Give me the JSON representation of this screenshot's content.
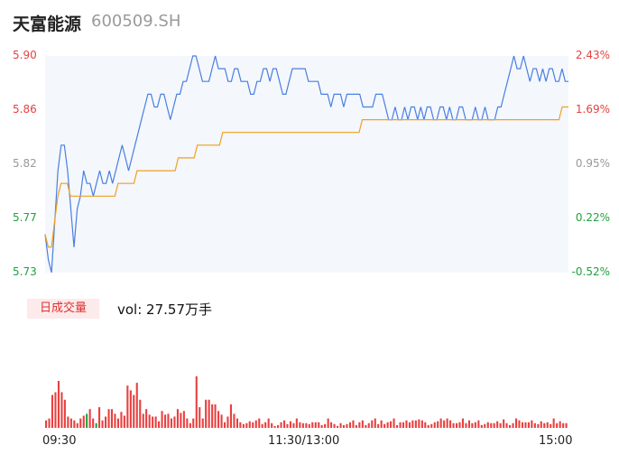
{
  "header": {
    "name": "天富能源",
    "code": "600509.SH"
  },
  "volume_panel": {
    "badge": "日成交量",
    "vol_text": "vol: 27.57万手"
  },
  "colors": {
    "price": "#4a7fe0",
    "avg": "#f0a020",
    "up": "#e84040",
    "down": "#20a040",
    "flat": "#999999",
    "area": "#f4f7fc"
  },
  "chart_data": [
    {
      "type": "line",
      "title": "",
      "xlabel": "",
      "ylabel": "",
      "x_ticks": [
        "09:30",
        "11:30/13:00",
        "15:00"
      ],
      "y_ticks_left": [
        "5.90",
        "5.86",
        "5.82",
        "5.77",
        "5.73"
      ],
      "y_ticks_right": [
        "2.43%",
        "1.69%",
        "0.95%",
        "0.22%",
        "-0.52%"
      ],
      "ylim": [
        5.73,
        5.9
      ],
      "grid": false,
      "series": [
        {
          "name": "",
          "values": [
            5.76,
            5.74,
            5.73,
            5.77,
            5.81,
            5.83,
            5.83,
            5.81,
            5.78,
            5.75,
            5.78,
            5.79,
            5.81,
            5.8,
            5.8,
            5.79,
            5.8,
            5.81,
            5.8,
            5.8,
            5.81,
            5.8,
            5.81,
            5.82,
            5.83,
            5.82,
            5.81,
            5.82,
            5.83,
            5.84,
            5.85,
            5.86,
            5.87,
            5.87,
            5.86,
            5.86,
            5.87,
            5.87,
            5.86,
            5.85,
            5.86,
            5.87,
            5.87,
            5.88,
            5.88,
            5.89,
            5.9,
            5.9,
            5.89,
            5.88,
            5.88,
            5.88,
            5.89,
            5.9,
            5.89,
            5.89,
            5.89,
            5.88,
            5.88,
            5.89,
            5.89,
            5.88,
            5.88,
            5.88,
            5.87,
            5.87,
            5.88,
            5.88,
            5.89,
            5.89,
            5.88,
            5.89,
            5.89,
            5.88,
            5.87,
            5.87,
            5.88,
            5.89,
            5.89,
            5.89,
            5.89,
            5.89,
            5.88,
            5.88,
            5.88,
            5.88,
            5.87,
            5.87,
            5.87,
            5.86,
            5.87,
            5.87,
            5.87,
            5.86,
            5.87,
            5.87,
            5.87,
            5.87,
            5.87,
            5.86,
            5.86,
            5.86,
            5.86,
            5.87,
            5.87,
            5.87,
            5.86,
            5.85,
            5.85,
            5.86,
            5.85,
            5.85,
            5.86,
            5.85,
            5.86,
            5.86,
            5.85,
            5.86,
            5.85,
            5.86,
            5.86,
            5.85,
            5.85,
            5.86,
            5.86,
            5.85,
            5.86,
            5.85,
            5.85,
            5.86,
            5.86,
            5.85,
            5.85,
            5.85,
            5.86,
            5.85,
            5.85,
            5.86,
            5.85,
            5.85,
            5.85,
            5.86,
            5.86,
            5.87,
            5.88,
            5.89,
            5.9,
            5.89,
            5.89,
            5.9,
            5.89,
            5.88,
            5.89,
            5.89,
            5.88,
            5.89,
            5.88,
            5.89,
            5.89,
            5.88,
            5.88,
            5.89,
            5.88,
            5.88
          ],
          "color": "#4a7fe0"
        },
        {
          "name": "",
          "values": [
            5.76,
            5.75,
            5.75,
            5.77,
            5.79,
            5.8,
            5.8,
            5.8,
            5.79,
            5.79,
            5.79,
            5.79,
            5.79,
            5.79,
            5.79,
            5.79,
            5.79,
            5.79,
            5.79,
            5.79,
            5.79,
            5.79,
            5.79,
            5.8,
            5.8,
            5.8,
            5.8,
            5.8,
            5.8,
            5.81,
            5.81,
            5.81,
            5.81,
            5.81,
            5.81,
            5.81,
            5.81,
            5.81,
            5.81,
            5.81,
            5.81,
            5.81,
            5.82,
            5.82,
            5.82,
            5.82,
            5.82,
            5.82,
            5.83,
            5.83,
            5.83,
            5.83,
            5.83,
            5.83,
            5.83,
            5.83,
            5.84,
            5.84,
            5.84,
            5.84,
            5.84,
            5.84,
            5.84,
            5.84,
            5.84,
            5.84,
            5.84,
            5.84,
            5.84,
            5.84,
            5.84,
            5.84,
            5.84,
            5.84,
            5.84,
            5.84,
            5.84,
            5.84,
            5.84,
            5.84,
            5.84,
            5.84,
            5.84,
            5.84,
            5.84,
            5.84,
            5.84,
            5.84,
            5.84,
            5.84,
            5.84,
            5.84,
            5.84,
            5.84,
            5.84,
            5.84,
            5.84,
            5.84,
            5.84,
            5.84,
            5.85,
            5.85,
            5.85,
            5.85,
            5.85,
            5.85,
            5.85,
            5.85,
            5.85,
            5.85,
            5.85,
            5.85,
            5.85,
            5.85,
            5.85,
            5.85,
            5.85,
            5.85,
            5.85,
            5.85,
            5.85,
            5.85,
            5.85,
            5.85,
            5.85,
            5.85,
            5.85,
            5.85,
            5.85,
            5.85,
            5.85,
            5.85,
            5.85,
            5.85,
            5.85,
            5.85,
            5.85,
            5.85,
            5.85,
            5.85,
            5.85,
            5.85,
            5.85,
            5.85,
            5.85,
            5.85,
            5.85,
            5.85,
            5.85,
            5.85,
            5.85,
            5.85,
            5.85,
            5.85,
            5.85,
            5.85,
            5.85,
            5.85,
            5.85,
            5.85,
            5.85,
            5.85,
            5.85,
            5.86,
            5.86,
            5.86
          ],
          "color": "#f0a020"
        }
      ]
    },
    {
      "type": "bar",
      "title": "",
      "x_ticks": [
        "09:30",
        "11:30/13:00",
        "15:00"
      ],
      "values": [
        0.08,
        0.1,
        0.35,
        0.38,
        0.5,
        0.38,
        0.3,
        0.12,
        0.1,
        0.08,
        0.05,
        0.1,
        0.13,
        0.15,
        0.2,
        0.1,
        0.05,
        0.22,
        0.08,
        0.12,
        0.2,
        0.2,
        0.15,
        0.1,
        0.17,
        0.13,
        0.45,
        0.4,
        0.35,
        0.48,
        0.3,
        0.15,
        0.2,
        0.14,
        0.12,
        0.12,
        0.07,
        0.18,
        0.14,
        0.15,
        0.1,
        0.12,
        0.2,
        0.16,
        0.18,
        0.1,
        0.05,
        0.1,
        0.55,
        0.22,
        0.1,
        0.3,
        0.3,
        0.25,
        0.25,
        0.18,
        0.14,
        0.06,
        0.12,
        0.25,
        0.15,
        0.1,
        0.06,
        0.04,
        0.05,
        0.07,
        0.06,
        0.08,
        0.1,
        0.04,
        0.06,
        0.1,
        0.05,
        0.02,
        0.03,
        0.06,
        0.08,
        0.04,
        0.07,
        0.05,
        0.1,
        0.06,
        0.05,
        0.05,
        0.04,
        0.06,
        0.06,
        0.06,
        0.03,
        0.04,
        0.1,
        0.06,
        0.04,
        0.02,
        0.05,
        0.03,
        0.04,
        0.06,
        0.08,
        0.03,
        0.06,
        0.08,
        0.03,
        0.05,
        0.08,
        0.1,
        0.04,
        0.08,
        0.04,
        0.06,
        0.07,
        0.1,
        0.03,
        0.06,
        0.06,
        0.08,
        0.06,
        0.08,
        0.08,
        0.09,
        0.08,
        0.06,
        0.03,
        0.04,
        0.06,
        0.07,
        0.1,
        0.08,
        0.1,
        0.08,
        0.05,
        0.05,
        0.06,
        0.1,
        0.05,
        0.08,
        0.05,
        0.06,
        0.08,
        0.03,
        0.04,
        0.06,
        0.05,
        0.05,
        0.07,
        0.05,
        0.09,
        0.05,
        0.03,
        0.05,
        0.1,
        0.08,
        0.06,
        0.06,
        0.06,
        0.08,
        0.05,
        0.04,
        0.07,
        0.05,
        0.06,
        0.04,
        0.1,
        0.05,
        0.07,
        0.05,
        0.05
      ],
      "colors": [
        "up",
        "up",
        "up",
        "up",
        "up",
        "up",
        "up",
        "up",
        "up",
        "up",
        "up",
        "up",
        "up",
        "down",
        "up",
        "up",
        "down",
        "up",
        "up",
        "up",
        "up",
        "up",
        "up",
        "up",
        "up",
        "up",
        "up",
        "up",
        "up",
        "up",
        "up",
        "up",
        "up",
        "up",
        "up",
        "up",
        "up",
        "up",
        "up",
        "up",
        "up",
        "up",
        "up",
        "up",
        "up",
        "up",
        "up",
        "up",
        "up",
        "up",
        "up",
        "up",
        "up",
        "up",
        "up",
        "up",
        "up",
        "up",
        "up",
        "up",
        "up",
        "up",
        "up",
        "up",
        "up",
        "up",
        "up",
        "up",
        "up",
        "up",
        "up",
        "up",
        "up",
        "up",
        "up",
        "up",
        "up",
        "up",
        "up",
        "up",
        "up",
        "up",
        "up",
        "up",
        "up",
        "up",
        "up",
        "up",
        "up",
        "up",
        "up",
        "up",
        "up",
        "up",
        "up",
        "up",
        "up",
        "up",
        "up",
        "up",
        "up",
        "up",
        "up",
        "up",
        "up",
        "up",
        "up",
        "up",
        "up",
        "up",
        "up",
        "up",
        "up",
        "up",
        "up",
        "up",
        "up",
        "up",
        "up",
        "up",
        "up",
        "up",
        "up",
        "up",
        "up",
        "up",
        "up",
        "up",
        "up",
        "up",
        "up",
        "up",
        "up",
        "up",
        "up",
        "up",
        "up",
        "up",
        "up",
        "up",
        "up",
        "up",
        "up",
        "up",
        "up",
        "up",
        "up",
        "up",
        "up",
        "up",
        "up",
        "up",
        "up",
        "up",
        "up",
        "up",
        "up",
        "up",
        "up",
        "up",
        "up",
        "up",
        "up",
        "up",
        "up",
        "up",
        "up",
        "up",
        "up"
      ]
    }
  ]
}
